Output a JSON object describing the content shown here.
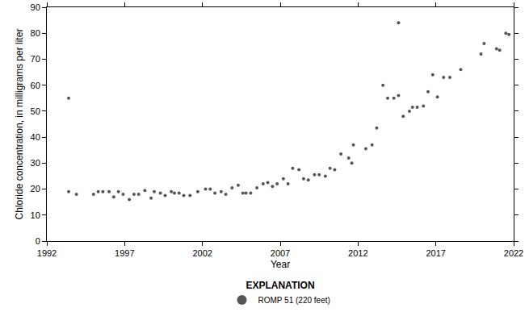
{
  "chart_data": {
    "type": "scatter",
    "x_label": "Year",
    "y_label": "Chloride concentration, in milligrams per liter",
    "legend_title": "EXPLANATION",
    "legend": "bottom",
    "grid": false,
    "marker": "circle",
    "x": [
      1993.4,
      1993.4,
      1993.9,
      1995.0,
      1995.3,
      1995.6,
      1996.0,
      1996.3,
      1996.6,
      1996.9,
      1997.3,
      1997.6,
      1997.9,
      1998.3,
      1998.7,
      1998.9,
      1999.3,
      1999.6,
      2000.0,
      2000.2,
      2000.5,
      2000.8,
      2001.2,
      2001.7,
      2002.2,
      2002.5,
      2002.8,
      2003.2,
      2003.5,
      2003.9,
      2004.3,
      2004.6,
      2004.8,
      2005.1,
      2005.5,
      2005.9,
      2006.2,
      2006.5,
      2006.8,
      2007.2,
      2007.5,
      2007.8,
      2008.2,
      2008.5,
      2008.8,
      2009.2,
      2009.5,
      2009.9,
      2010.2,
      2010.5,
      2010.9,
      2011.4,
      2011.6,
      2011.7,
      2012.5,
      2012.9,
      2013.2,
      2013.6,
      2013.9,
      2014.3,
      2014.6,
      2014.6,
      2014.9,
      2015.3,
      2015.5,
      2015.8,
      2016.2,
      2016.5,
      2016.8,
      2017.1,
      2017.5,
      2017.9,
      2018.6,
      2019.9,
      2020.1,
      2020.9,
      2021.1,
      2021.5,
      2021.7
    ],
    "series": [
      {
        "name": "ROMP 51 (220 feet)",
        "color": "#555555",
        "values": [
          55,
          19,
          18,
          18,
          19,
          19,
          19,
          17,
          19,
          18,
          16,
          18,
          18,
          19.5,
          16.5,
          19,
          18.5,
          17.5,
          19,
          18.5,
          18.5,
          17.5,
          17.5,
          19,
          20,
          20,
          18.5,
          19,
          18,
          20.5,
          21.5,
          18.5,
          18.5,
          18.5,
          20.5,
          22,
          22.5,
          21,
          22,
          24,
          22,
          28,
          27.5,
          24,
          23.5,
          25.5,
          25.5,
          25,
          28,
          27.5,
          33.5,
          32,
          30,
          37,
          35.5,
          37,
          43.5,
          60,
          55,
          55,
          84,
          56,
          48,
          50,
          51.5,
          51.5,
          52,
          57.5,
          64,
          55.5,
          63,
          63,
          66,
          72,
          76,
          74,
          73.5,
          80,
          79.5
        ]
      }
    ],
    "xlim": [
      1992,
      2022
    ],
    "xticks": [
      1992,
      1997,
      2002,
      2007,
      2012,
      2017,
      2022
    ],
    "ylim": [
      0,
      90
    ],
    "yticks": [
      0,
      10,
      20,
      30,
      40,
      50,
      60,
      70,
      80,
      90
    ]
  }
}
